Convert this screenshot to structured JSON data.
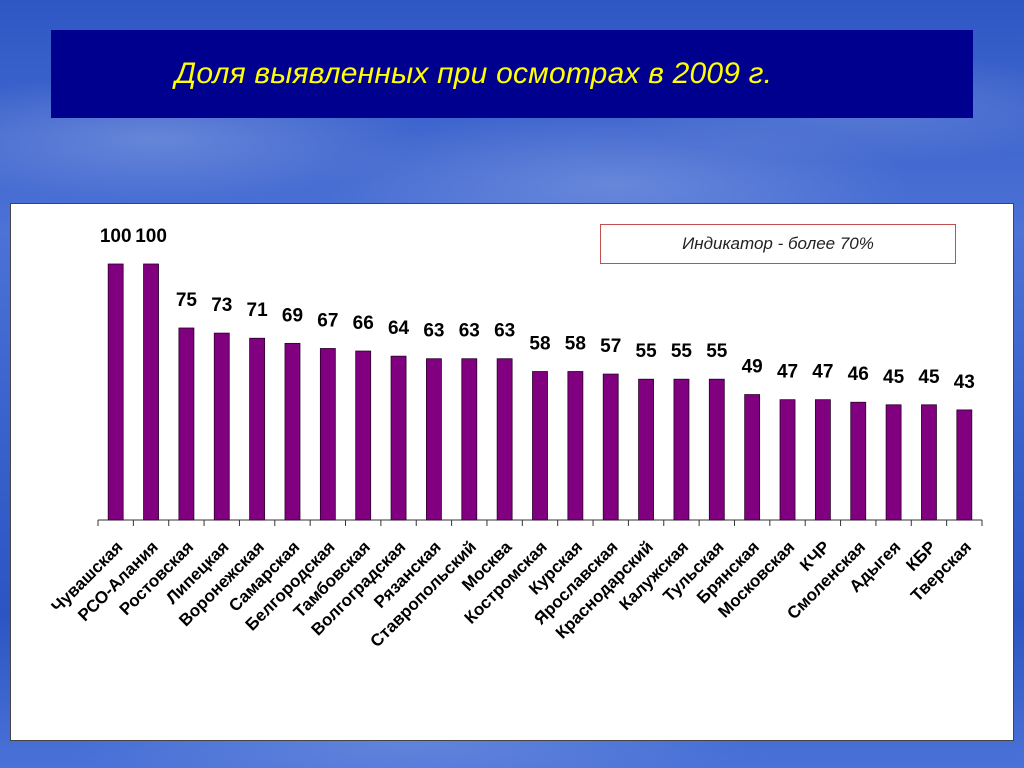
{
  "title": "Доля выявленных при осмотрах в 2009 г.",
  "indicator": "Индикатор - более 70%",
  "colors": {
    "bar": "#800080",
    "title_bg": "#00008f",
    "title_text": "#ffff00"
  },
  "chart_data": {
    "type": "bar",
    "title": "",
    "xlabel": "",
    "ylabel": "",
    "ylim": [
      0,
      100
    ],
    "grid": false,
    "categories": [
      "Чувашская",
      "РСО-Алания",
      "Ростовская",
      "Липецкая",
      "Воронежская",
      "Самарская",
      "Белгородская",
      "Тамбовская",
      "Волгоградская",
      "Рязанская",
      "Ставропольский",
      "Москва",
      "Костромская",
      "Курская",
      "Ярославская",
      "Краснодарский",
      "Калужская",
      "Тульская",
      "Брянская",
      "Московская",
      "КЧР",
      "Смоленская",
      "Адыгея",
      "КБР",
      "Тверская"
    ],
    "values": [
      100,
      100,
      75,
      73,
      71,
      69,
      67,
      66,
      64,
      63,
      63,
      63,
      58,
      58,
      57,
      55,
      55,
      55,
      49,
      47,
      47,
      46,
      45,
      45,
      43
    ]
  }
}
